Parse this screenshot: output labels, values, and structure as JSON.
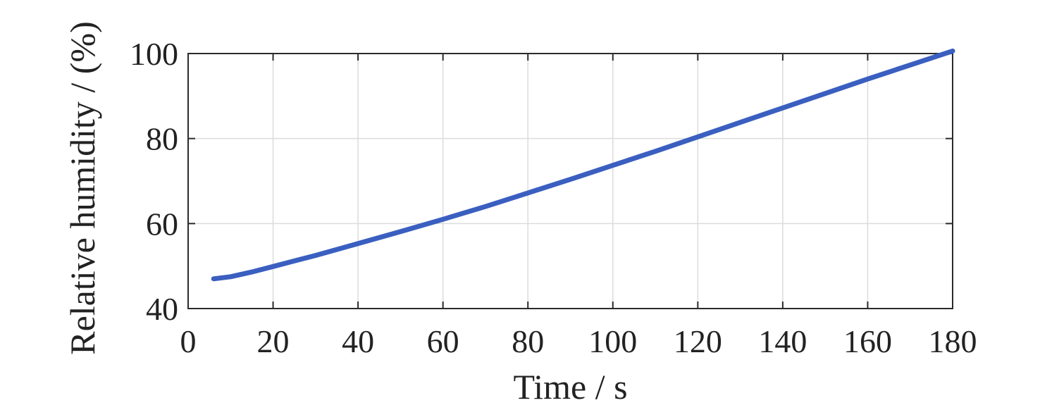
{
  "chart_data": {
    "type": "line",
    "title": "",
    "xlabel": "Time / s",
    "ylabel": "Relative humidity / (%)",
    "xlim": [
      0,
      180
    ],
    "ylim": [
      40,
      100
    ],
    "xticks": [
      0,
      20,
      40,
      60,
      80,
      100,
      120,
      140,
      160,
      180
    ],
    "yticks": [
      40,
      60,
      80,
      100
    ],
    "grid": true,
    "legend": "none",
    "series": [
      {
        "color": "#3a5fc0",
        "x": [
          6,
          10,
          15,
          20,
          25,
          30,
          40,
          50,
          60,
          70,
          80,
          90,
          100,
          110,
          120,
          130,
          140,
          150,
          160,
          170,
          180
        ],
        "y": [
          47.0,
          47.5,
          48.6,
          49.9,
          51.2,
          52.5,
          55.3,
          58.1,
          61.0,
          64.0,
          67.2,
          70.4,
          73.7,
          77.0,
          80.4,
          83.8,
          87.2,
          90.6,
          94.0,
          97.3,
          100.6
        ]
      }
    ]
  }
}
